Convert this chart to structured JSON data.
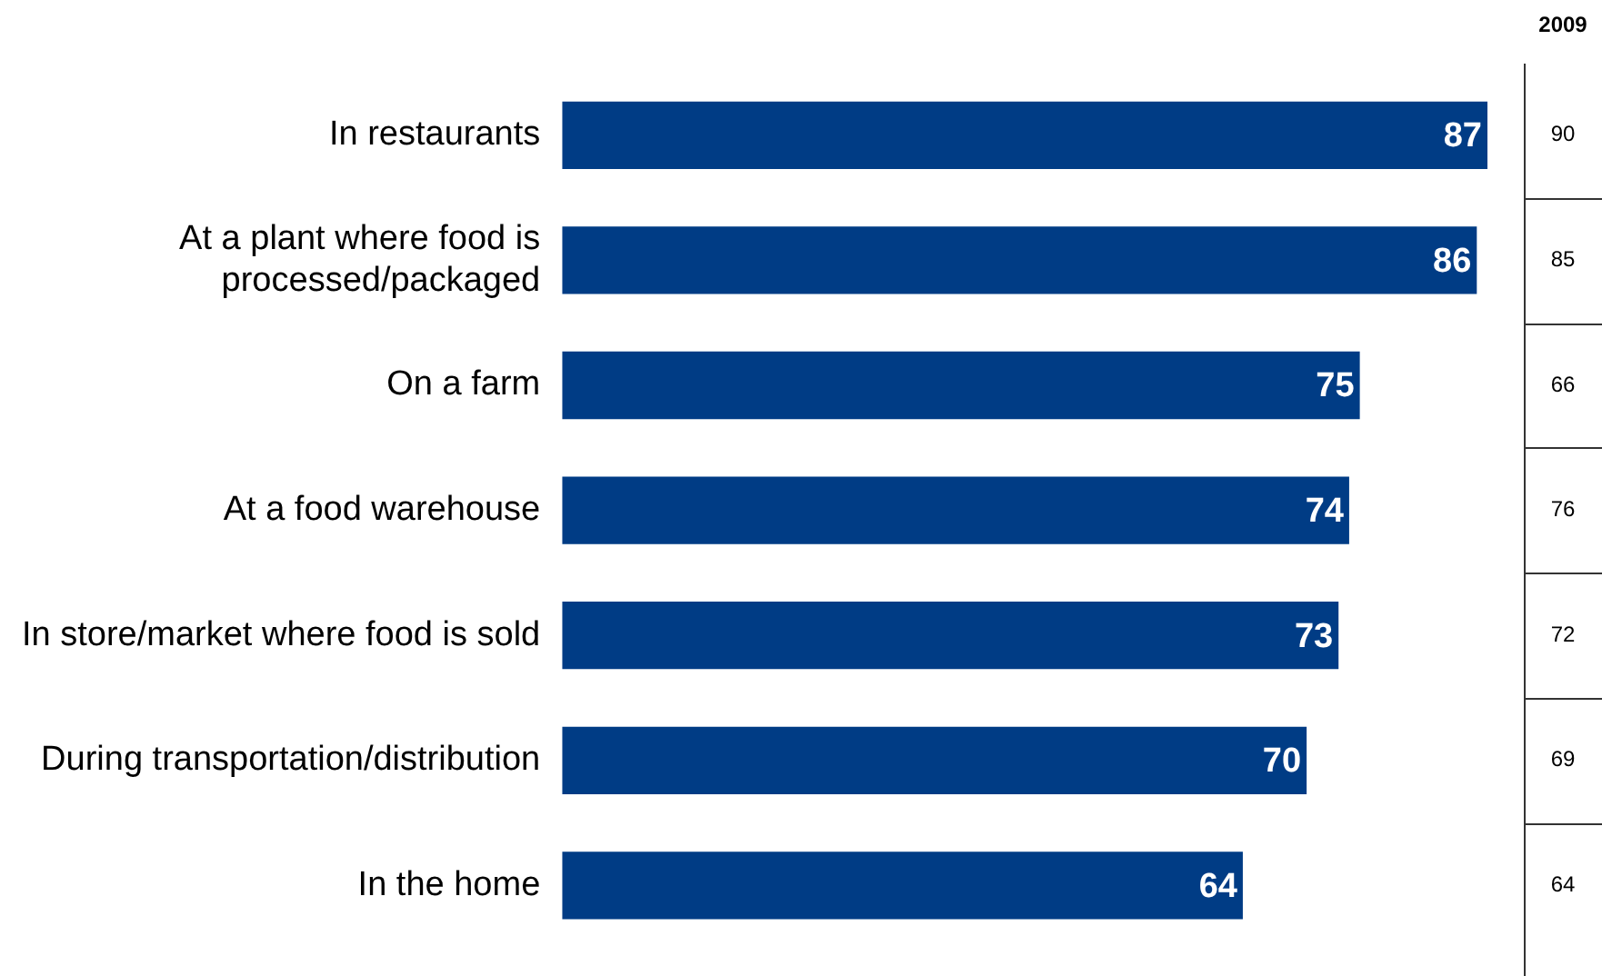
{
  "chart_data": {
    "type": "bar",
    "orientation": "horizontal",
    "data_labels": true,
    "legend": false,
    "categories": [
      "In restaurants",
      "At a plant where food is processed/packaged",
      "On a farm",
      "At a food warehouse",
      "In store/market where food is sold",
      "During transportation/distribution",
      "In the home"
    ],
    "series": [
      {
        "color": "#003c85",
        "values": [
          87,
          86,
          75,
          74,
          73,
          70,
          64
        ]
      }
    ],
    "annotations": [
      "2009",
      "90",
      "85",
      "66",
      "76",
      "72",
      "69",
      "64"
    ]
  }
}
